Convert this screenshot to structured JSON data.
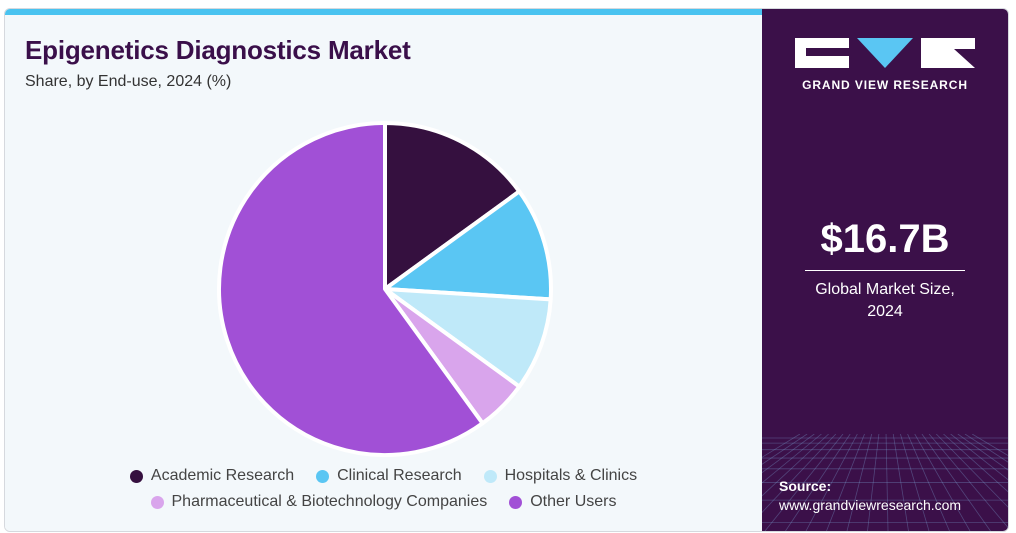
{
  "chart_data": {
    "type": "pie",
    "title": "Epigenetics Diagnostics Market",
    "subtitle": "Share, by End-use, 2024 (%)",
    "legend_position": "bottom",
    "categories": [
      "Academic Research",
      "Clinical Research",
      "Hospitals & Clinics",
      "Pharmaceutical & Biotechnology Companies",
      "Other Users"
    ],
    "values": [
      15,
      11,
      9,
      5,
      60
    ],
    "colors": [
      "#35103f",
      "#5ac6f3",
      "#bfe9f9",
      "#d9a5ec",
      "#a150d6"
    ],
    "order": "clockwise from top"
  },
  "sidebar": {
    "logo_text": "GRAND VIEW RESEARCH",
    "market_size": "$16.7B",
    "market_caption_line1": "Global Market Size,",
    "market_caption_line2": "2024",
    "source_label": "Source:",
    "source_url": "www.grandviewresearch.com"
  },
  "colors": {
    "accent_bar": "#49c3f0",
    "sidebar_bg": "#3b1049",
    "title_color": "#3a0f4a",
    "chart_bg": "#f3f8fb"
  }
}
